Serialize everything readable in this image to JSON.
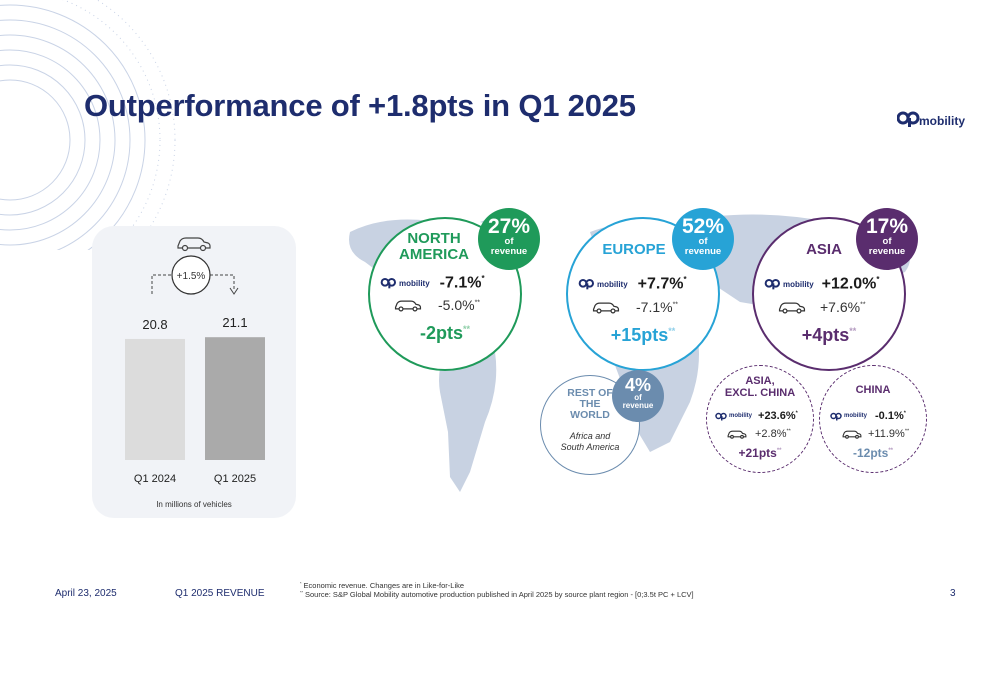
{
  "title": "Outperformance of +1.8pts in Q1 2025",
  "logo": {
    "text": "mobility",
    "mark": "OP"
  },
  "chart_data": {
    "type": "bar",
    "categories": [
      "Q1 2024",
      "Q1 2025"
    ],
    "values": [
      20.8,
      21.1
    ],
    "value_labels": [
      "20.8",
      "21.1"
    ],
    "change_label": "+1.5%",
    "unit_note": "In millions of vehicles",
    "icon": "car-icon",
    "colors": [
      "#dcdcdc",
      "#aaaaaa"
    ]
  },
  "regions": {
    "north_america": {
      "name_line1": "NORTH",
      "name_line2": "AMERICA",
      "revenue_pct": "27%",
      "revenue_l1": "of",
      "revenue_l2": "revenue",
      "op_growth": "-7.1%",
      "op_sup": "*",
      "market_growth": "-5.0%",
      "market_sup": "**",
      "pts": "-2pts",
      "pts_sup": "**",
      "color": "#1f9a5a"
    },
    "europe": {
      "name": "EUROPE",
      "revenue_pct": "52%",
      "revenue_l1": "of",
      "revenue_l2": "revenue",
      "op_growth": "+7.7%",
      "op_sup": "*",
      "market_growth": "-7.1%",
      "market_sup": "**",
      "pts": "+15pts",
      "pts_sup": "**",
      "color": "#27a3d6"
    },
    "asia": {
      "name": "ASIA",
      "revenue_pct": "17%",
      "revenue_l1": "of",
      "revenue_l2": "revenue",
      "op_growth": "+12.0%",
      "op_sup": "*",
      "market_growth": "+7.6%",
      "market_sup": "**",
      "pts": "+4pts",
      "pts_sup": "**",
      "color": "#5a2d6e"
    },
    "rest_of_world": {
      "name_line1": "REST OF",
      "name_line2": "THE",
      "name_line3": "WORLD",
      "revenue_pct": "4%",
      "revenue_l1": "of",
      "revenue_l2": "revenue",
      "note_line1": "Africa and",
      "note_line2": "South America",
      "color": "#6b8cae"
    },
    "asia_excl_china": {
      "name_line1": "ASIA,",
      "name_line2": "EXCL. CHINA",
      "op_growth": "+23.6%",
      "op_sup": "*",
      "market_growth": "+2.8%",
      "market_sup": "**",
      "pts": "+21pts",
      "pts_sup": "**",
      "color": "#5a2d6e"
    },
    "china": {
      "name": "CHINA",
      "op_growth": "-0.1%",
      "op_sup": "*",
      "market_growth": "+11.9%",
      "market_sup": "**",
      "pts": "-12pts",
      "pts_sup": "**",
      "color": "#5a2d6e"
    }
  },
  "footer": {
    "date": "April 23, 2025",
    "section": "Q1 2025 REVENUE",
    "page": "3",
    "note1_mark": "*",
    "note1": " Economic revenue. Changes are in Like-for-Like",
    "note2_mark": "**",
    "note2": " Source: S&P Global Mobility automotive production published in April 2025 by source plant region - [0;3.5t PC + LCV]"
  }
}
